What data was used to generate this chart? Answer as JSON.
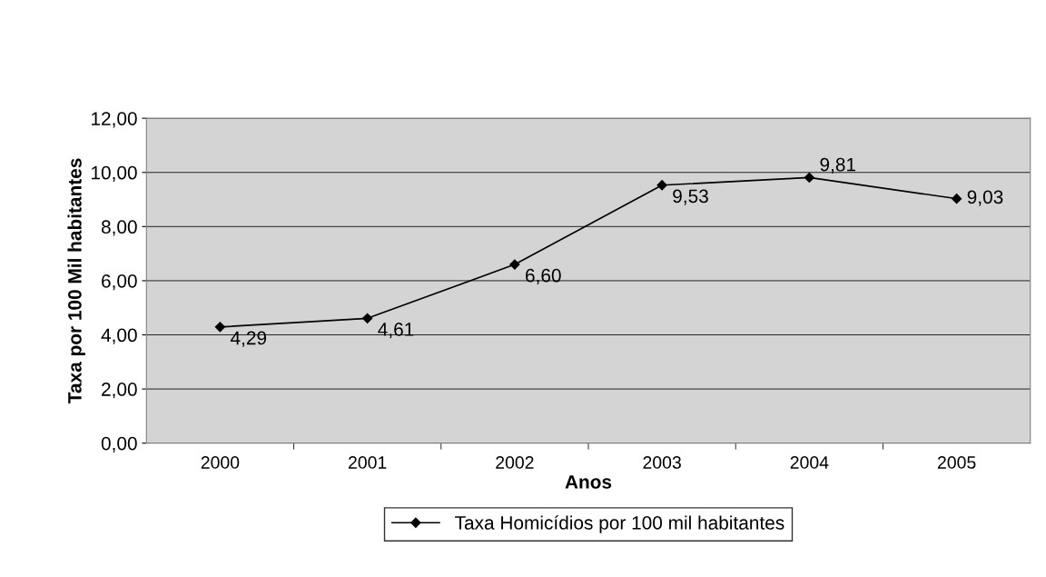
{
  "chart_data": {
    "type": "line",
    "xlabel": "Anos",
    "ylabel": "Taxa por 100 Mil habitantes",
    "categories": [
      "2000",
      "2001",
      "2002",
      "2003",
      "2004",
      "2005"
    ],
    "series": [
      {
        "name": "Taxa Homicídios por 100 mil habitantes",
        "color": "#000000",
        "values": [
          4.29,
          4.61,
          6.6,
          9.53,
          9.81,
          9.03
        ]
      }
    ],
    "value_labels": [
      "4,29",
      "4,61",
      "6,60",
      "9,53",
      "9,81",
      "9,03"
    ],
    "ylim": [
      0,
      12
    ],
    "yticks": [
      {
        "value": 0,
        "label": "0,00"
      },
      {
        "value": 2,
        "label": "2,00"
      },
      {
        "value": 4,
        "label": "4,00"
      },
      {
        "value": 6,
        "label": "6,00"
      },
      {
        "value": 8,
        "label": "8,00"
      },
      {
        "value": 10,
        "label": "10,00"
      },
      {
        "value": 12,
        "label": "12,00"
      }
    ],
    "grid": "y",
    "legend": "bottom",
    "marker": "diamond",
    "line_style": "solid"
  }
}
